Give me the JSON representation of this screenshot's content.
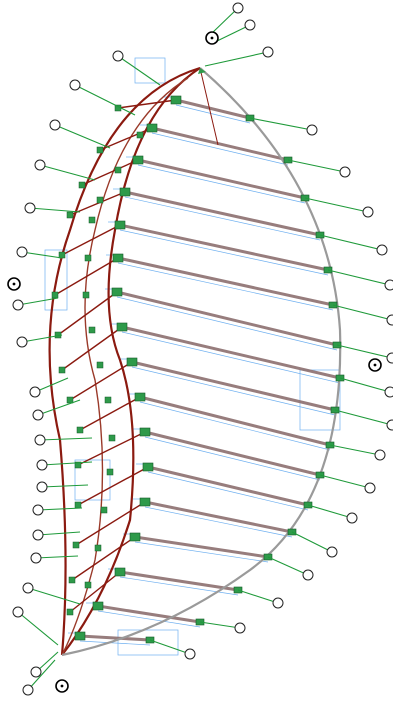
{
  "drawing": {
    "colors": {
      "background": "#ffffff",
      "outer_arc": "#8b1a10",
      "secondary_arc": "#9a3a2a",
      "right_arc": "#9a9a9a",
      "rib": "#8c6f6f",
      "dimension": "#6fb0f0",
      "leader": "#1f9a3a",
      "connector": "#2e9a4a",
      "bubble_stroke": "#222222"
    },
    "bubble_labels": [
      "",
      "",
      "",
      "",
      "",
      "",
      "",
      "",
      "",
      "",
      "",
      "",
      "",
      "",
      "",
      "",
      "",
      "",
      "",
      "",
      "",
      "",
      "",
      "",
      "",
      "",
      "",
      "",
      "",
      "",
      "",
      "",
      "",
      "",
      "",
      "",
      "",
      "",
      "",
      "",
      "",
      ""
    ],
    "section_marks": [
      "",
      "",
      ""
    ],
    "dimension_texts": []
  }
}
